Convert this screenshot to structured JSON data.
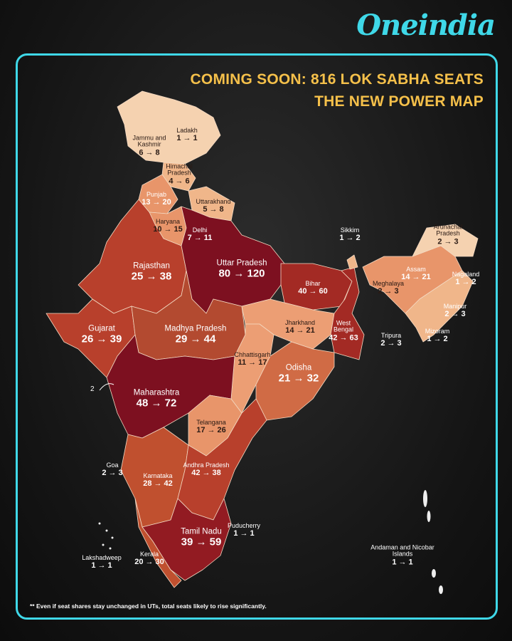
{
  "header": {
    "brand": "Oneindia",
    "title_line1": "COMING SOON: 816 LOK SABHA SEATS",
    "title_line2": "THE NEW POWER MAP"
  },
  "states": [
    {
      "name": "Ladakh",
      "seats": "1 → 1"
    },
    {
      "name": "Jammu and Kashmir",
      "seats": "6 → 8"
    },
    {
      "name": "Himachal Pradesh",
      "seats": "4 → 6"
    },
    {
      "name": "Punjab",
      "seats": "13 → 20"
    },
    {
      "name": "Uttarakhand",
      "seats": "5 → 8"
    },
    {
      "name": "Haryana",
      "seats": "10 → 15"
    },
    {
      "name": "Delhi",
      "seats": "7 → 11"
    },
    {
      "name": "Uttar Pradesh",
      "seats": "80 → 120"
    },
    {
      "name": "Rajasthan",
      "seats": "25 → 38"
    },
    {
      "name": "Bihar",
      "seats": "40 → 60"
    },
    {
      "name": "Sikkim",
      "seats": "1 → 2"
    },
    {
      "name": "Arunachal Pradesh",
      "seats": "2 → 3"
    },
    {
      "name": "Assam",
      "seats": "14 → 21"
    },
    {
      "name": "Meghalaya",
      "seats": "2 → 3"
    },
    {
      "name": "Nagaland",
      "seats": "1 → 2"
    },
    {
      "name": "Manipur",
      "seats": "2 → 3"
    },
    {
      "name": "Mizoram",
      "seats": "1 → 2"
    },
    {
      "name": "Tripura",
      "seats": "2 → 3"
    },
    {
      "name": "Gujarat",
      "seats": "26 → 39"
    },
    {
      "name": "Madhya Pradesh",
      "seats": "29 → 44"
    },
    {
      "name": "Jharkhand",
      "seats": "14 → 21"
    },
    {
      "name": "West Bengal",
      "seats": "42 → 63"
    },
    {
      "name": "Chhattisgarh",
      "seats": "11 → 17"
    },
    {
      "name": "Odisha",
      "seats": "21 → 32"
    },
    {
      "name": "Maharashtra",
      "seats": "48 → 72"
    },
    {
      "name": "Telangana",
      "seats": "17 → 26"
    },
    {
      "name": "Goa",
      "seats": "2 → 3"
    },
    {
      "name": "Andhra Pradesh",
      "seats": "42 → 38"
    },
    {
      "name": "Karnataka",
      "seats": "28 → 42"
    },
    {
      "name": "Puducherry",
      "seats": "1 → 1"
    },
    {
      "name": "Tamil Nadu",
      "seats": "39 → 59"
    },
    {
      "name": "Lakshadweep",
      "seats": "1 → 1"
    },
    {
      "name": "Kerala",
      "seats": "20 → 30"
    },
    {
      "name": "Andaman and Nicobar Islands",
      "seats": "1 → 1"
    }
  ],
  "dnh_label": "2",
  "footnote": "** Even if seat shares stay unchanged in UTs, total seats likely to rise significantly."
}
